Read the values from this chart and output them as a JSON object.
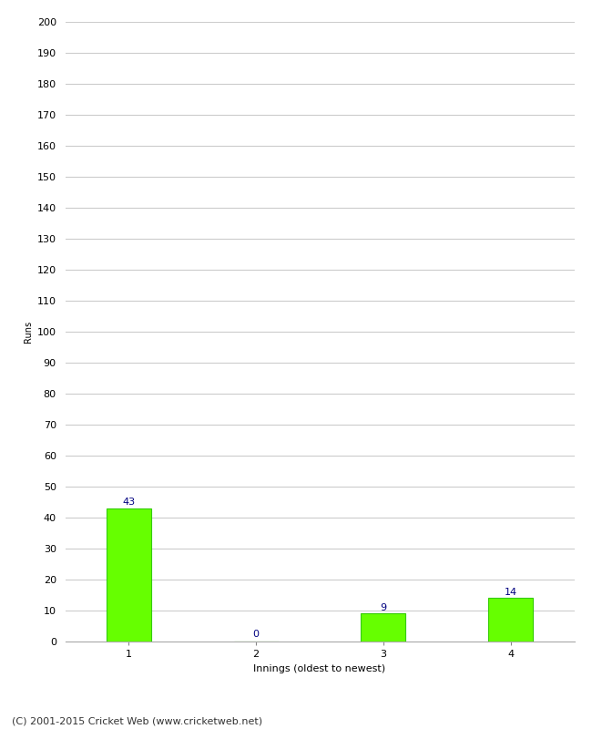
{
  "categories": [
    "1",
    "2",
    "3",
    "4"
  ],
  "values": [
    43,
    0,
    9,
    14
  ],
  "bar_color": "#66ff00",
  "bar_edge_color": "#33cc00",
  "label_color": "#000080",
  "ylabel": "Runs",
  "xlabel": "Innings (oldest to newest)",
  "ylim": [
    0,
    200
  ],
  "yticks": [
    0,
    10,
    20,
    30,
    40,
    50,
    60,
    70,
    80,
    90,
    100,
    110,
    120,
    130,
    140,
    150,
    160,
    170,
    180,
    190,
    200
  ],
  "background_color": "#ffffff",
  "grid_color": "#cccccc",
  "footer": "(C) 2001-2015 Cricket Web (www.cricketweb.net)",
  "label_fontsize": 8,
  "axis_fontsize": 8,
  "ylabel_fontsize": 7,
  "xlabel_fontsize": 8,
  "footer_fontsize": 8,
  "bar_width": 0.35
}
